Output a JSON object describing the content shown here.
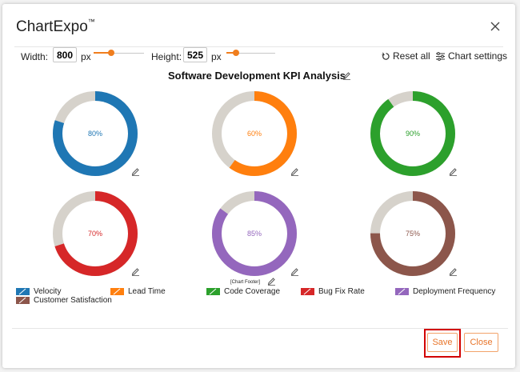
{
  "dialog": {
    "title": "ChartExpo",
    "title_mark": "™",
    "close_icon": "close-icon"
  },
  "controls": {
    "width_label": "Width:",
    "width_value": "800",
    "width_unit": "px",
    "width_slider_level": 0.35,
    "height_label": "Height:",
    "height_value": "525",
    "height_unit": "px",
    "height_slider_level": 0.2,
    "reset_label": "Reset all",
    "settings_label": "Chart settings"
  },
  "chart_data": {
    "type": "donut-grid",
    "title": "Software Development KPI Analysis",
    "footer": "[Chart Footer]",
    "track_color": "#d6d2cb",
    "charts": [
      {
        "name": "Velocity",
        "value": 80,
        "label": "80%",
        "color": "#1f77b4"
      },
      {
        "name": "Lead Time",
        "value": 60,
        "label": "60%",
        "color": "#ff7f0e"
      },
      {
        "name": "Code Coverage",
        "value": 90,
        "label": "90%",
        "color": "#2ca02c"
      },
      {
        "name": "Bug Fix Rate",
        "value": 70,
        "label": "70%",
        "color": "#d62728"
      },
      {
        "name": "Deployment Frequency",
        "value": 85,
        "label": "85%",
        "color": "#9467bd"
      },
      {
        "name": "Customer Satisfaction",
        "value": 75,
        "label": "75%",
        "color": "#8c564b"
      }
    ]
  },
  "legend": [
    {
      "label": "Velocity",
      "color": "#1f77b4"
    },
    {
      "label": "Lead Time",
      "color": "#ff7f0e"
    },
    {
      "label": "Code Coverage",
      "color": "#2ca02c"
    },
    {
      "label": "Bug Fix Rate",
      "color": "#d62728"
    },
    {
      "label": "Deployment Frequency",
      "color": "#9467bd"
    },
    {
      "label": "Customer Satisfaction",
      "color": "#8c564b"
    }
  ],
  "footer_buttons": {
    "save_label": "Save",
    "close_label": "Close"
  }
}
